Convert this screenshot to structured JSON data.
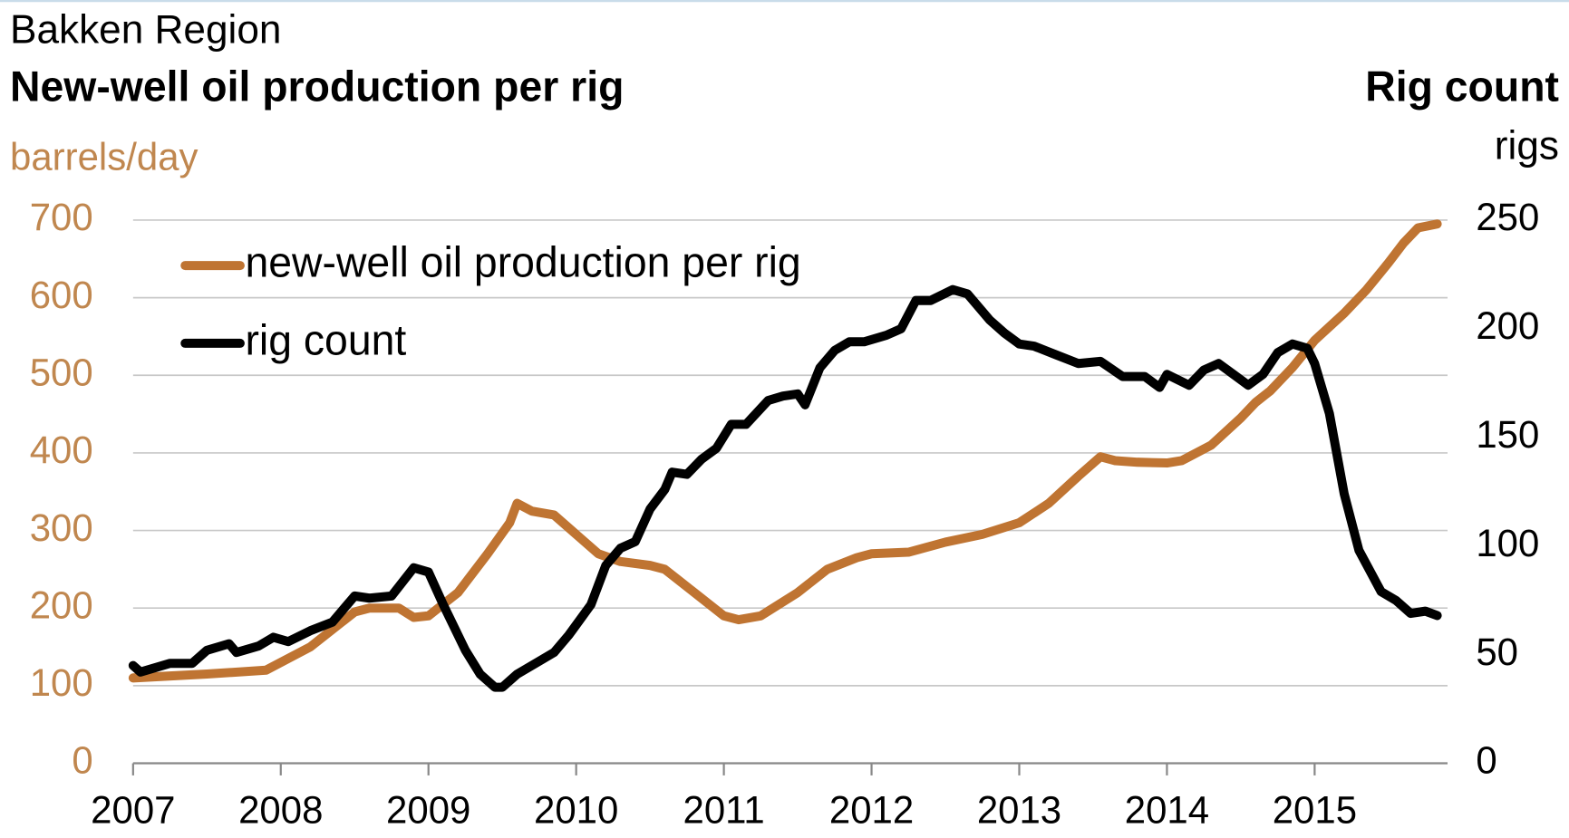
{
  "chart_data": {
    "type": "line",
    "title": "Bakken Region",
    "y_title": "New-well oil production per rig",
    "y_unit": "barrels/day",
    "y2_title": "Rig count",
    "y2_unit": "rigs",
    "xlim": [
      2007,
      2015.9
    ],
    "xticks": [
      2007,
      2008,
      2009,
      2010,
      2011,
      2012,
      2013,
      2014,
      2015
    ],
    "ylim": [
      0,
      700
    ],
    "yticks": [
      0,
      100,
      200,
      300,
      400,
      500,
      600,
      700
    ],
    "y2lim": [
      0,
      250
    ],
    "y2ticks": [
      0,
      50,
      100,
      150,
      200,
      250
    ],
    "grid": true,
    "legend": "upper left",
    "series": [
      {
        "name": "new-well oil production per rig",
        "color": "#bf7432",
        "x": [
          2007.0,
          2007.5,
          2007.9,
          2008.2,
          2008.5,
          2008.6,
          2008.8,
          2008.9,
          2009.0,
          2009.2,
          2009.4,
          2009.55,
          2009.6,
          2009.7,
          2009.85,
          2010.0,
          2010.15,
          2010.3,
          2010.5,
          2010.6,
          2010.8,
          2011.0,
          2011.1,
          2011.25,
          2011.5,
          2011.7,
          2011.9,
          2012.0,
          2012.25,
          2012.5,
          2012.75,
          2013.0,
          2013.2,
          2013.4,
          2013.55,
          2013.65,
          2013.8,
          2014.0,
          2014.1,
          2014.3,
          2014.5,
          2014.6,
          2014.7,
          2014.85,
          2015.0,
          2015.2,
          2015.35,
          2015.5,
          2015.6,
          2015.7,
          2015.83
        ],
        "values": [
          110,
          115,
          120,
          150,
          195,
          200,
          200,
          188,
          190,
          220,
          270,
          310,
          335,
          325,
          320,
          295,
          270,
          260,
          255,
          250,
          220,
          190,
          185,
          190,
          220,
          250,
          265,
          270,
          272,
          285,
          295,
          310,
          335,
          370,
          395,
          390,
          388,
          387,
          390,
          410,
          445,
          465,
          480,
          510,
          545,
          580,
          610,
          645,
          670,
          690,
          695
        ]
      },
      {
        "name": "rig count",
        "color": "#000000",
        "axis": "y2",
        "x": [
          2007.0,
          2007.05,
          2007.25,
          2007.4,
          2007.5,
          2007.65,
          2007.7,
          2007.85,
          2007.95,
          2008.05,
          2008.2,
          2008.35,
          2008.5,
          2008.6,
          2008.75,
          2008.9,
          2009.0,
          2009.1,
          2009.25,
          2009.35,
          2009.45,
          2009.5,
          2009.6,
          2009.75,
          2009.85,
          2009.95,
          2010.1,
          2010.2,
          2010.3,
          2010.4,
          2010.5,
          2010.6,
          2010.65,
          2010.75,
          2010.85,
          2010.95,
          2011.05,
          2011.15,
          2011.3,
          2011.4,
          2011.5,
          2011.55,
          2011.65,
          2011.75,
          2011.85,
          2011.95,
          2012.1,
          2012.2,
          2012.3,
          2012.4,
          2012.55,
          2012.65,
          2012.8,
          2012.9,
          2013.0,
          2013.1,
          2013.25,
          2013.4,
          2013.55,
          2013.7,
          2013.85,
          2013.95,
          2014.0,
          2014.15,
          2014.25,
          2014.35,
          2014.45,
          2014.55,
          2014.65,
          2014.75,
          2014.85,
          2014.95,
          2015.0,
          2015.1,
          2015.2,
          2015.3,
          2015.45,
          2015.55,
          2015.65,
          2015.75,
          2015.83
        ],
        "values": [
          45,
          42,
          46,
          46,
          52,
          55,
          51,
          54,
          58,
          56,
          61,
          65,
          77,
          76,
          77,
          90,
          88,
          73,
          52,
          41,
          35,
          35,
          41,
          47,
          51,
          59,
          73,
          91,
          99,
          102,
          117,
          126,
          134,
          133,
          140,
          145,
          156,
          156,
          167,
          169,
          170,
          165,
          182,
          190,
          194,
          194,
          197,
          200,
          213,
          213,
          218,
          216,
          204,
          198,
          193,
          192,
          188,
          184,
          185,
          178,
          178,
          173,
          179,
          174,
          181,
          184,
          179,
          174,
          179,
          189,
          193,
          191,
          184,
          161,
          124,
          98,
          79,
          75,
          69,
          70,
          68
        ]
      }
    ]
  }
}
